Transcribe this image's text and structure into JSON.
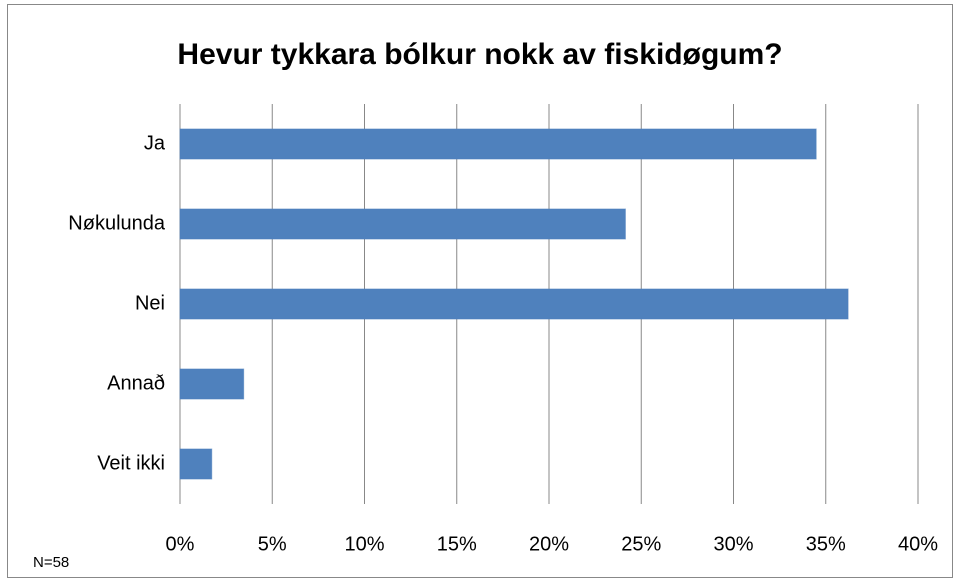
{
  "chart_data": {
    "type": "bar",
    "orientation": "horizontal",
    "title": "Hevur tykkara bólkur nokk av fiskidøgum?",
    "note": "N=58",
    "categories": [
      "Ja",
      "Nøkulunda",
      "Nei",
      "Annað",
      "Veit ikki"
    ],
    "values": [
      34.48,
      24.14,
      36.21,
      3.45,
      1.72
    ],
    "color": "#4f81bd",
    "xlim": [
      0,
      40
    ],
    "xticks": [
      {
        "value": 0,
        "label": "0%"
      },
      {
        "value": 5,
        "label": "5%"
      },
      {
        "value": 10,
        "label": "10%"
      },
      {
        "value": 15,
        "label": "15%"
      },
      {
        "value": 20,
        "label": "20%"
      },
      {
        "value": 25,
        "label": "25%"
      },
      {
        "value": 30,
        "label": "30%"
      },
      {
        "value": 35,
        "label": "35%"
      },
      {
        "value": 40,
        "label": "40%"
      }
    ],
    "grid": true
  }
}
